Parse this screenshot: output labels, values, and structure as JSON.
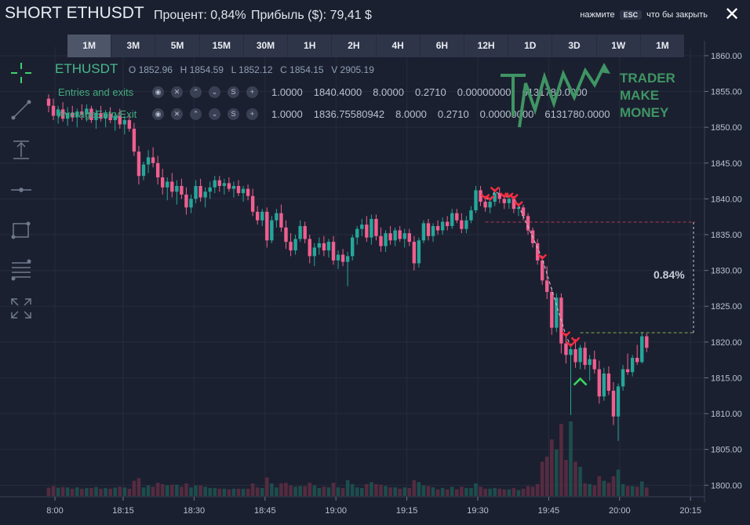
{
  "header": {
    "title": "SHORT ETHUSDT",
    "percent_label": "Процент: 0,84%",
    "profit_label": "Прибыль ($): 79,41 $",
    "hint_prefix": "нажмите",
    "hint_key": "ESC",
    "hint_suffix": "что бы закрыть",
    "close_icon": "close-icon"
  },
  "timeframes": [
    "1M",
    "3M",
    "5M",
    "15M",
    "30M",
    "1H",
    "2H",
    "4H",
    "6H",
    "12H",
    "1D",
    "3D",
    "1W",
    "1M"
  ],
  "active_timeframe_index": 0,
  "toolbar": [
    {
      "name": "crosshair-icon"
    },
    {
      "name": "trend-line-icon"
    },
    {
      "name": "vertical-arrow-icon"
    },
    {
      "name": "horizontal-line-icon"
    },
    {
      "name": "rectangle-icon"
    },
    {
      "name": "fib-retracement-icon"
    },
    {
      "name": "fullscreen-icon"
    }
  ],
  "legend": {
    "symbol": "ETHUSDT",
    "open": "O 1852.96",
    "high": "H 1854.59",
    "low": "L 1852.12",
    "close": "C 1854.15",
    "volume": "V 2905.19"
  },
  "indicators": [
    {
      "name": "Entries and exits",
      "values": [
        "1.0000",
        "1840.4000",
        "8.0000",
        "0.2710",
        "0.00000000",
        "6131780.0000"
      ]
    },
    {
      "name": "AverageEntryExit",
      "values": [
        "1.0000",
        "1836.75580942",
        "8.0000",
        "0.2710",
        "0.00000000",
        "6131780.0000"
      ]
    }
  ],
  "indicator_buttons": [
    "eye",
    "x",
    "up",
    "down",
    "S",
    "+"
  ],
  "logo": {
    "line1": "TRADER",
    "line2": "MAKE",
    "line3": "MONEY"
  },
  "annotation": {
    "percent": "0.84%"
  },
  "colors": {
    "up": "#26a69a",
    "down": "#ef5f8f",
    "grid": "#262c3d",
    "entry_line": "#b0384f",
    "exit_line": "#7fb04a",
    "logo": "#3f9563"
  },
  "chart_data": {
    "type": "candlestick",
    "symbol": "ETHUSDT",
    "interval": "1M",
    "x_tick_labels": [
      "8:00",
      "18:15",
      "18:30",
      "18:45",
      "19:00",
      "19:15",
      "19:30",
      "19:45",
      "20:00",
      "20:15"
    ],
    "y_tick_labels": [
      "1800.00",
      "1805.00",
      "1810.00",
      "1815.00",
      "1820.00",
      "1825.00",
      "1830.00",
      "1835.00",
      "1840.00",
      "1845.00",
      "1850.00",
      "1855.00",
      "1860.00"
    ],
    "ylim": [
      1798.5,
      1861.2
    ],
    "entry_price": 1836.75,
    "exit_price": 1821.3,
    "grid": true,
    "candles": [
      {
        "o": 1854.0,
        "h": 1854.6,
        "l": 1852.1,
        "c": 1853.0
      },
      {
        "o": 1853.0,
        "h": 1854.0,
        "l": 1851.0,
        "c": 1851.6
      },
      {
        "o": 1851.6,
        "h": 1853.0,
        "l": 1850.5,
        "c": 1852.5
      },
      {
        "o": 1852.5,
        "h": 1853.5,
        "l": 1850.8,
        "c": 1851.2
      },
      {
        "o": 1851.2,
        "h": 1852.8,
        "l": 1850.2,
        "c": 1852.0
      },
      {
        "o": 1852.0,
        "h": 1853.0,
        "l": 1850.8,
        "c": 1851.4
      },
      {
        "o": 1851.4,
        "h": 1852.6,
        "l": 1850.0,
        "c": 1852.2
      },
      {
        "o": 1852.2,
        "h": 1853.2,
        "l": 1851.0,
        "c": 1851.8
      },
      {
        "o": 1851.8,
        "h": 1853.2,
        "l": 1850.8,
        "c": 1852.6
      },
      {
        "o": 1852.6,
        "h": 1853.0,
        "l": 1850.6,
        "c": 1851.0
      },
      {
        "o": 1851.0,
        "h": 1852.5,
        "l": 1849.8,
        "c": 1852.0
      },
      {
        "o": 1852.0,
        "h": 1853.0,
        "l": 1850.8,
        "c": 1851.2
      },
      {
        "o": 1851.2,
        "h": 1852.4,
        "l": 1850.0,
        "c": 1851.9
      },
      {
        "o": 1851.9,
        "h": 1852.8,
        "l": 1850.6,
        "c": 1851.0
      },
      {
        "o": 1851.0,
        "h": 1852.0,
        "l": 1849.5,
        "c": 1851.6
      },
      {
        "o": 1851.6,
        "h": 1852.6,
        "l": 1849.8,
        "c": 1850.4
      },
      {
        "o": 1850.4,
        "h": 1851.6,
        "l": 1849.0,
        "c": 1851.0
      },
      {
        "o": 1851.0,
        "h": 1851.6,
        "l": 1849.4,
        "c": 1849.8
      },
      {
        "o": 1849.8,
        "h": 1850.6,
        "l": 1846.0,
        "c": 1846.6
      },
      {
        "o": 1846.6,
        "h": 1847.4,
        "l": 1842.0,
        "c": 1843.2
      },
      {
        "o": 1843.2,
        "h": 1845.2,
        "l": 1842.6,
        "c": 1844.8
      },
      {
        "o": 1844.8,
        "h": 1846.8,
        "l": 1843.6,
        "c": 1845.8
      },
      {
        "o": 1845.8,
        "h": 1847.2,
        "l": 1844.4,
        "c": 1845.0
      },
      {
        "o": 1845.0,
        "h": 1846.0,
        "l": 1842.0,
        "c": 1843.0
      },
      {
        "o": 1843.0,
        "h": 1844.2,
        "l": 1840.6,
        "c": 1841.6
      },
      {
        "o": 1841.6,
        "h": 1843.0,
        "l": 1839.8,
        "c": 1842.4
      },
      {
        "o": 1842.4,
        "h": 1843.6,
        "l": 1840.2,
        "c": 1841.0
      },
      {
        "o": 1841.0,
        "h": 1842.6,
        "l": 1839.2,
        "c": 1841.8
      },
      {
        "o": 1841.8,
        "h": 1842.8,
        "l": 1840.0,
        "c": 1840.6
      },
      {
        "o": 1840.6,
        "h": 1841.6,
        "l": 1837.8,
        "c": 1838.8
      },
      {
        "o": 1838.8,
        "h": 1840.6,
        "l": 1838.0,
        "c": 1840.0
      },
      {
        "o": 1840.0,
        "h": 1842.6,
        "l": 1839.4,
        "c": 1841.8
      },
      {
        "o": 1841.8,
        "h": 1842.8,
        "l": 1839.6,
        "c": 1840.2
      },
      {
        "o": 1840.2,
        "h": 1841.6,
        "l": 1838.8,
        "c": 1841.0
      },
      {
        "o": 1841.0,
        "h": 1842.4,
        "l": 1840.0,
        "c": 1841.6
      },
      {
        "o": 1841.6,
        "h": 1843.2,
        "l": 1840.8,
        "c": 1842.6
      },
      {
        "o": 1842.6,
        "h": 1843.2,
        "l": 1841.0,
        "c": 1841.8
      },
      {
        "o": 1841.8,
        "h": 1842.8,
        "l": 1840.6,
        "c": 1842.2
      },
      {
        "o": 1842.2,
        "h": 1843.0,
        "l": 1841.0,
        "c": 1841.4
      },
      {
        "o": 1841.4,
        "h": 1842.4,
        "l": 1840.2,
        "c": 1841.8
      },
      {
        "o": 1841.8,
        "h": 1842.6,
        "l": 1840.4,
        "c": 1840.8
      },
      {
        "o": 1840.8,
        "h": 1841.8,
        "l": 1839.6,
        "c": 1841.4
      },
      {
        "o": 1841.4,
        "h": 1842.0,
        "l": 1839.8,
        "c": 1840.4
      },
      {
        "o": 1840.4,
        "h": 1841.4,
        "l": 1837.6,
        "c": 1838.2
      },
      {
        "o": 1838.2,
        "h": 1839.0,
        "l": 1836.4,
        "c": 1837.0
      },
      {
        "o": 1837.0,
        "h": 1838.6,
        "l": 1836.2,
        "c": 1838.2
      },
      {
        "o": 1838.2,
        "h": 1838.8,
        "l": 1833.2,
        "c": 1834.2
      },
      {
        "o": 1834.2,
        "h": 1837.6,
        "l": 1833.8,
        "c": 1837.0
      },
      {
        "o": 1837.0,
        "h": 1838.6,
        "l": 1836.0,
        "c": 1838.0
      },
      {
        "o": 1838.0,
        "h": 1839.2,
        "l": 1835.4,
        "c": 1836.0
      },
      {
        "o": 1836.0,
        "h": 1837.0,
        "l": 1833.0,
        "c": 1834.0
      },
      {
        "o": 1834.0,
        "h": 1835.2,
        "l": 1832.0,
        "c": 1832.8
      },
      {
        "o": 1832.8,
        "h": 1835.0,
        "l": 1832.2,
        "c": 1834.4
      },
      {
        "o": 1834.4,
        "h": 1837.0,
        "l": 1834.0,
        "c": 1836.2
      },
      {
        "o": 1836.2,
        "h": 1836.8,
        "l": 1833.8,
        "c": 1834.4
      },
      {
        "o": 1834.4,
        "h": 1835.0,
        "l": 1831.0,
        "c": 1832.0
      },
      {
        "o": 1832.0,
        "h": 1833.8,
        "l": 1830.6,
        "c": 1833.2
      },
      {
        "o": 1833.2,
        "h": 1834.6,
        "l": 1832.2,
        "c": 1833.8
      },
      {
        "o": 1833.8,
        "h": 1834.8,
        "l": 1832.0,
        "c": 1832.8
      },
      {
        "o": 1832.8,
        "h": 1834.4,
        "l": 1831.8,
        "c": 1834.0
      },
      {
        "o": 1834.0,
        "h": 1834.8,
        "l": 1830.8,
        "c": 1831.4
      },
      {
        "o": 1831.4,
        "h": 1832.8,
        "l": 1830.2,
        "c": 1832.2
      },
      {
        "o": 1832.2,
        "h": 1833.0,
        "l": 1830.6,
        "c": 1831.2
      },
      {
        "o": 1831.2,
        "h": 1832.6,
        "l": 1827.8,
        "c": 1832.0
      },
      {
        "o": 1832.0,
        "h": 1835.0,
        "l": 1831.4,
        "c": 1834.6
      },
      {
        "o": 1834.6,
        "h": 1836.2,
        "l": 1833.6,
        "c": 1835.8
      },
      {
        "o": 1835.8,
        "h": 1837.2,
        "l": 1834.8,
        "c": 1836.4
      },
      {
        "o": 1836.4,
        "h": 1837.6,
        "l": 1834.0,
        "c": 1834.6
      },
      {
        "o": 1834.6,
        "h": 1837.8,
        "l": 1833.6,
        "c": 1837.2
      },
      {
        "o": 1837.2,
        "h": 1837.8,
        "l": 1834.2,
        "c": 1834.8
      },
      {
        "o": 1834.8,
        "h": 1836.0,
        "l": 1832.6,
        "c": 1833.4
      },
      {
        "o": 1833.4,
        "h": 1835.6,
        "l": 1832.6,
        "c": 1835.2
      },
      {
        "o": 1835.2,
        "h": 1836.2,
        "l": 1833.6,
        "c": 1834.2
      },
      {
        "o": 1834.2,
        "h": 1836.0,
        "l": 1833.4,
        "c": 1835.6
      },
      {
        "o": 1835.6,
        "h": 1836.2,
        "l": 1834.0,
        "c": 1834.4
      },
      {
        "o": 1834.4,
        "h": 1835.8,
        "l": 1833.2,
        "c": 1835.2
      },
      {
        "o": 1835.2,
        "h": 1835.8,
        "l": 1833.4,
        "c": 1834.0
      },
      {
        "o": 1834.0,
        "h": 1834.8,
        "l": 1830.0,
        "c": 1831.0
      },
      {
        "o": 1831.0,
        "h": 1834.6,
        "l": 1830.4,
        "c": 1834.2
      },
      {
        "o": 1834.2,
        "h": 1837.0,
        "l": 1833.8,
        "c": 1836.6
      },
      {
        "o": 1836.6,
        "h": 1837.2,
        "l": 1834.2,
        "c": 1834.8
      },
      {
        "o": 1834.8,
        "h": 1836.6,
        "l": 1834.0,
        "c": 1836.2
      },
      {
        "o": 1836.2,
        "h": 1837.0,
        "l": 1835.0,
        "c": 1835.6
      },
      {
        "o": 1835.6,
        "h": 1837.4,
        "l": 1835.0,
        "c": 1836.8
      },
      {
        "o": 1836.8,
        "h": 1837.6,
        "l": 1835.6,
        "c": 1836.2
      },
      {
        "o": 1836.2,
        "h": 1838.6,
        "l": 1835.8,
        "c": 1838.0
      },
      {
        "o": 1838.0,
        "h": 1838.6,
        "l": 1836.6,
        "c": 1837.0
      },
      {
        "o": 1837.0,
        "h": 1838.0,
        "l": 1835.2,
        "c": 1835.8
      },
      {
        "o": 1835.8,
        "h": 1837.6,
        "l": 1835.2,
        "c": 1837.0
      },
      {
        "o": 1837.0,
        "h": 1839.0,
        "l": 1836.6,
        "c": 1838.4
      },
      {
        "o": 1838.4,
        "h": 1841.8,
        "l": 1838.0,
        "c": 1841.2
      },
      {
        "o": 1841.2,
        "h": 1841.8,
        "l": 1839.0,
        "c": 1839.6
      },
      {
        "o": 1839.6,
        "h": 1840.4,
        "l": 1838.2,
        "c": 1838.8
      },
      {
        "o": 1838.8,
        "h": 1840.2,
        "l": 1838.0,
        "c": 1839.6
      },
      {
        "o": 1839.6,
        "h": 1841.4,
        "l": 1839.0,
        "c": 1840.8
      },
      {
        "o": 1840.8,
        "h": 1841.6,
        "l": 1839.4,
        "c": 1840.0
      },
      {
        "o": 1840.0,
        "h": 1840.6,
        "l": 1838.6,
        "c": 1839.4
      },
      {
        "o": 1839.4,
        "h": 1840.6,
        "l": 1838.6,
        "c": 1840.0
      },
      {
        "o": 1840.0,
        "h": 1840.4,
        "l": 1838.0,
        "c": 1838.6
      },
      {
        "o": 1838.6,
        "h": 1839.4,
        "l": 1837.6,
        "c": 1838.8
      },
      {
        "o": 1838.8,
        "h": 1839.2,
        "l": 1837.0,
        "c": 1837.6
      },
      {
        "o": 1837.6,
        "h": 1838.0,
        "l": 1835.0,
        "c": 1835.6
      },
      {
        "o": 1835.6,
        "h": 1836.0,
        "l": 1833.2,
        "c": 1833.8
      },
      {
        "o": 1833.8,
        "h": 1834.4,
        "l": 1830.8,
        "c": 1831.4
      },
      {
        "o": 1831.4,
        "h": 1832.0,
        "l": 1828.0,
        "c": 1828.6
      },
      {
        "o": 1828.6,
        "h": 1830.6,
        "l": 1826.0,
        "c": 1827.0
      },
      {
        "o": 1827.0,
        "h": 1827.6,
        "l": 1821.0,
        "c": 1822.0
      },
      {
        "o": 1822.0,
        "h": 1826.8,
        "l": 1821.4,
        "c": 1826.2
      },
      {
        "o": 1826.2,
        "h": 1826.8,
        "l": 1818.4,
        "c": 1819.8
      },
      {
        "o": 1819.8,
        "h": 1821.2,
        "l": 1817.0,
        "c": 1818.2
      },
      {
        "o": 1818.2,
        "h": 1819.8,
        "l": 1809.8,
        "c": 1819.0
      },
      {
        "o": 1819.0,
        "h": 1820.4,
        "l": 1816.4,
        "c": 1817.2
      },
      {
        "o": 1817.2,
        "h": 1819.6,
        "l": 1816.2,
        "c": 1819.2
      },
      {
        "o": 1819.2,
        "h": 1820.0,
        "l": 1816.2,
        "c": 1816.8
      },
      {
        "o": 1816.8,
        "h": 1818.2,
        "l": 1814.6,
        "c": 1817.6
      },
      {
        "o": 1817.6,
        "h": 1818.8,
        "l": 1815.6,
        "c": 1816.2
      },
      {
        "o": 1816.2,
        "h": 1817.4,
        "l": 1811.4,
        "c": 1812.4
      },
      {
        "o": 1812.4,
        "h": 1816.4,
        "l": 1811.8,
        "c": 1815.6
      },
      {
        "o": 1815.6,
        "h": 1816.6,
        "l": 1812.6,
        "c": 1813.2
      },
      {
        "o": 1813.2,
        "h": 1814.4,
        "l": 1808.4,
        "c": 1809.6
      },
      {
        "o": 1809.6,
        "h": 1814.2,
        "l": 1806.2,
        "c": 1813.8
      },
      {
        "o": 1813.8,
        "h": 1816.8,
        "l": 1813.2,
        "c": 1816.2
      },
      {
        "o": 1816.2,
        "h": 1818.4,
        "l": 1815.4,
        "c": 1815.8
      },
      {
        "o": 1815.8,
        "h": 1818.2,
        "l": 1815.2,
        "c": 1817.8
      },
      {
        "o": 1817.8,
        "h": 1819.6,
        "l": 1816.8,
        "c": 1817.2
      },
      {
        "o": 1817.2,
        "h": 1821.4,
        "l": 1817.0,
        "c": 1820.8
      },
      {
        "o": 1820.8,
        "h": 1821.2,
        "l": 1818.6,
        "c": 1819.2
      }
    ]
  }
}
